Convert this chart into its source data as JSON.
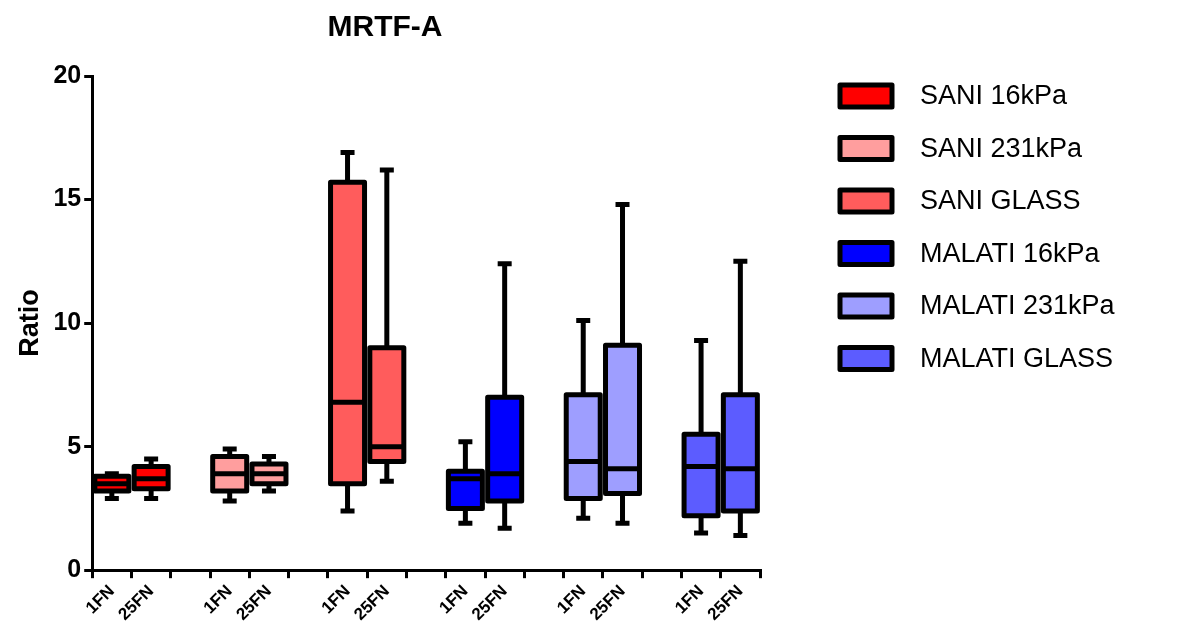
{
  "chart_data": {
    "type": "box",
    "title": "MRTF-A",
    "ylabel": "Ratio",
    "categories": [
      "1FN",
      "25FN",
      null,
      "1FN",
      "25FN",
      null,
      "1FN",
      "25FN",
      null,
      "1FN",
      "25FN",
      null,
      "1FN",
      "25FN",
      null,
      "1FN",
      "25FN"
    ],
    "ylim": [
      0,
      20
    ],
    "yticks": [
      0,
      5,
      10,
      15,
      20
    ],
    "grid": false,
    "legend": "right",
    "series": [
      {
        "name": "SANI 16kPa",
        "color": "#ff0000",
        "boxes": [
          {
            "low": 2.9,
            "q1": 3.2,
            "median": 3.5,
            "q3": 3.8,
            "high": 3.9
          },
          {
            "low": 2.9,
            "q1": 3.3,
            "median": 3.7,
            "q3": 4.2,
            "high": 4.5
          },
          null,
          null,
          null,
          null,
          null,
          null,
          null,
          null,
          null,
          null,
          null,
          null,
          null,
          null,
          null
        ]
      },
      {
        "name": "SANI 231kPa",
        "color": "#ff9e9e",
        "boxes": [
          null,
          null,
          null,
          {
            "low": 2.8,
            "q1": 3.2,
            "median": 3.9,
            "q3": 4.6,
            "high": 4.9
          },
          {
            "low": 3.2,
            "q1": 3.5,
            "median": 3.9,
            "q3": 4.3,
            "high": 4.6
          },
          null,
          null,
          null,
          null,
          null,
          null,
          null,
          null,
          null,
          null,
          null,
          null
        ]
      },
      {
        "name": "SANI GLASS",
        "color": "#ff5c5c",
        "boxes": [
          null,
          null,
          null,
          null,
          null,
          null,
          {
            "low": 2.4,
            "q1": 3.5,
            "median": 6.8,
            "q3": 15.7,
            "high": 16.9
          },
          {
            "low": 3.6,
            "q1": 4.4,
            "median": 5.0,
            "q3": 9.0,
            "high": 16.2
          },
          null,
          null,
          null,
          null,
          null,
          null,
          null,
          null,
          null
        ]
      },
      {
        "name": "MALATI 16kPa",
        "color": "#0000ff",
        "boxes": [
          null,
          null,
          null,
          null,
          null,
          null,
          null,
          null,
          null,
          {
            "low": 1.9,
            "q1": 2.5,
            "median": 3.7,
            "q3": 4.0,
            "high": 5.2
          },
          {
            "low": 1.7,
            "q1": 2.8,
            "median": 3.9,
            "q3": 7.0,
            "high": 12.4
          },
          null,
          null,
          null,
          null,
          null,
          null
        ]
      },
      {
        "name": "MALATI 231kPa",
        "color": "#9e9eff",
        "boxes": [
          null,
          null,
          null,
          null,
          null,
          null,
          null,
          null,
          null,
          null,
          null,
          null,
          {
            "low": 2.1,
            "q1": 2.9,
            "median": 4.4,
            "q3": 7.1,
            "high": 10.1
          },
          {
            "low": 1.9,
            "q1": 3.1,
            "median": 4.1,
            "q3": 9.1,
            "high": 14.8
          },
          null,
          null,
          null
        ]
      },
      {
        "name": "MALATI GLASS",
        "color": "#5c5cff",
        "boxes": [
          null,
          null,
          null,
          null,
          null,
          null,
          null,
          null,
          null,
          null,
          null,
          null,
          null,
          null,
          null,
          {
            "low": 1.5,
            "q1": 2.2,
            "median": 4.2,
            "q3": 5.5,
            "high": 9.3
          },
          {
            "low": 1.4,
            "q1": 2.4,
            "median": 4.1,
            "q3": 7.1,
            "high": 12.5
          }
        ]
      }
    ]
  }
}
